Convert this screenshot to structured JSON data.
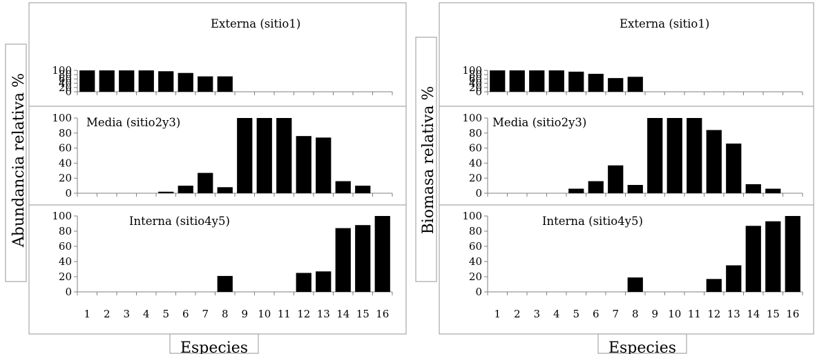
{
  "chart_data": [
    {
      "type": "bar",
      "ylabel": "Abundancia  relativa  %",
      "xlabel": "Especies",
      "categories": [
        "1",
        "2",
        "3",
        "4",
        "5",
        "6",
        "7",
        "8",
        "9",
        "10",
        "11",
        "12",
        "13",
        "14",
        "15",
        "16"
      ],
      "ylim": [
        0,
        100
      ],
      "yticks": [
        "0",
        "20",
        "40",
        "60",
        "80",
        "100"
      ],
      "subplots": [
        {
          "title": "Externa  (sitio1)",
          "values": [
            100,
            100,
            100,
            100,
            96,
            88,
            72,
            72,
            0,
            0,
            0,
            0,
            0,
            0,
            0,
            0
          ]
        },
        {
          "title": "Media  (sitio2y3)",
          "values": [
            0,
            0,
            0,
            0,
            2,
            10,
            27,
            8,
            100,
            100,
            100,
            76,
            74,
            16,
            10,
            0
          ]
        },
        {
          "title": "Interna  (sitio4y5)",
          "values": [
            0,
            0,
            0,
            0,
            0,
            0,
            0,
            21,
            0,
            0,
            0,
            25,
            27,
            84,
            88,
            100
          ]
        }
      ]
    },
    {
      "type": "bar",
      "ylabel": "Biomasa   relativa   %",
      "xlabel": "Especies",
      "categories": [
        "1",
        "2",
        "3",
        "4",
        "5",
        "6",
        "7",
        "8",
        "9",
        "10",
        "11",
        "12",
        "13",
        "14",
        "15",
        "16"
      ],
      "ylim": [
        0,
        100
      ],
      "yticks": [
        "0",
        "20",
        "40",
        "60",
        "80",
        "100"
      ],
      "subplots": [
        {
          "title": "Externa  (sitio1)",
          "values": [
            100,
            100,
            100,
            100,
            94,
            84,
            64,
            70,
            0,
            0,
            0,
            0,
            0,
            0,
            0,
            0
          ]
        },
        {
          "title": "Media  (sitio2y3)",
          "values": [
            0,
            0,
            0,
            0,
            6,
            16,
            37,
            11,
            100,
            100,
            100,
            84,
            66,
            12,
            6,
            0
          ]
        },
        {
          "title": "Interna  (sitio4y5)",
          "values": [
            0,
            0,
            0,
            0,
            0,
            0,
            0,
            19,
            0,
            0,
            0,
            17,
            35,
            87,
            93,
            100
          ]
        }
      ]
    }
  ]
}
